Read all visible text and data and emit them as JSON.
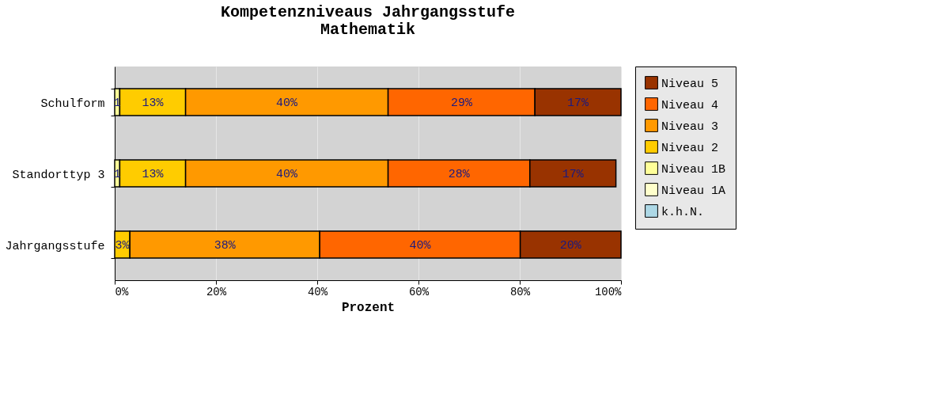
{
  "chart_data": {
    "type": "bar",
    "orientation": "horizontal",
    "stacked": true,
    "title": [
      "Kompetenzniveaus Jahrgangsstufe",
      "Mathematik"
    ],
    "xlabel": "Prozent",
    "categories": [
      "Schulform",
      "Standorttyp 3",
      "Jahrgangsstufe"
    ],
    "series": [
      {
        "name": "k.h.N.",
        "color": "#add8e6",
        "values": [
          null,
          null,
          null
        ]
      },
      {
        "name": "Niveau 1A",
        "color": "#ffffcc",
        "values": [
          null,
          null,
          null
        ]
      },
      {
        "name": "Niveau 1B",
        "color": "#ffff99",
        "values": [
          1,
          1,
          null
        ],
        "value_labels": [
          "1",
          "1",
          null
        ]
      },
      {
        "name": "Niveau 2",
        "color": "#ffcc00",
        "values": [
          13,
          13,
          3
        ],
        "value_labels": [
          "13%",
          "13%",
          "3%"
        ]
      },
      {
        "name": "Niveau 3",
        "color": "#ff9900",
        "values": [
          40,
          40,
          37.5
        ],
        "value_labels": [
          "40%",
          "40%",
          "38%"
        ]
      },
      {
        "name": "Niveau 4",
        "color": "#ff6600",
        "values": [
          29,
          28,
          39.6
        ],
        "value_labels": [
          "29%",
          "28%",
          "40%"
        ]
      },
      {
        "name": "Niveau 5",
        "color": "#993300",
        "values": [
          17,
          17,
          19.9
        ],
        "value_labels": [
          "17%",
          "17%",
          "20%"
        ]
      }
    ],
    "xlim": [
      0,
      100
    ],
    "xticks": [
      {
        "value": 0,
        "label": "0%"
      },
      {
        "value": 20,
        "label": "20%"
      },
      {
        "value": 40,
        "label": "40%"
      },
      {
        "value": 60,
        "label": "60%"
      },
      {
        "value": 80,
        "label": "80%"
      },
      {
        "value": 100,
        "label": "100%"
      }
    ],
    "grid": "x",
    "legend": "right"
  }
}
